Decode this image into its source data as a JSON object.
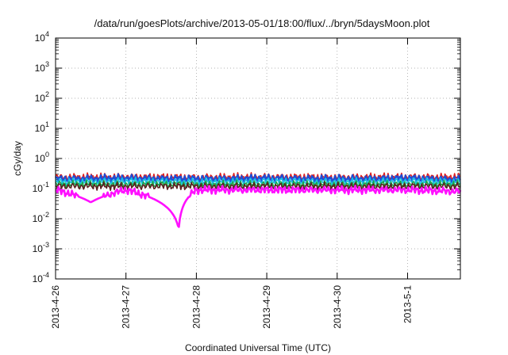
{
  "chart_data": {
    "type": "line",
    "title": "/data/run/goesPlots/archive/2013-05-01/18:00/flux/../bryn/5daysMoon.plot",
    "xlabel": "Coordinated Universal Time (UTC)",
    "ylabel": "cGy/day",
    "y_scale": "log",
    "ylim": [
      0.0001,
      10000
    ],
    "y_ticks": [
      {
        "mantissa": "10",
        "exp": "-4"
      },
      {
        "mantissa": "10",
        "exp": "-3"
      },
      {
        "mantissa": "10",
        "exp": "-2"
      },
      {
        "mantissa": "10",
        "exp": "-1"
      },
      {
        "mantissa": "10",
        "exp": "0"
      },
      {
        "mantissa": "10",
        "exp": "1"
      },
      {
        "mantissa": "10",
        "exp": "2"
      },
      {
        "mantissa": "10",
        "exp": "3"
      },
      {
        "mantissa": "10",
        "exp": "4"
      }
    ],
    "xlim": [
      "2013-04-26",
      "2013-05-01T18:00"
    ],
    "x_ticks": [
      "2013-4-26",
      "2013-4-27",
      "2013-4-28",
      "2013-4-29",
      "2013-4-30",
      "2013-5-1"
    ],
    "grid": true,
    "legend": "none",
    "series": [
      {
        "color": "#e02020",
        "base": 0.24,
        "x": [
          "2013-04-26",
          "2013-04-27",
          "2013-04-28",
          "2013-04-29",
          "2013-04-30",
          "2013-05-01",
          "2013-05-01T18:00"
        ],
        "y": [
          0.24,
          0.25,
          0.24,
          0.25,
          0.24,
          0.25,
          0.24
        ]
      },
      {
        "color": "#1f4fd6",
        "base": 0.21,
        "x": [
          "2013-04-26",
          "2013-04-27",
          "2013-04-28",
          "2013-04-29",
          "2013-04-30",
          "2013-05-01",
          "2013-05-01T18:00"
        ],
        "y": [
          0.21,
          0.22,
          0.21,
          0.22,
          0.21,
          0.22,
          0.2
        ]
      },
      {
        "color": "#19c2e0",
        "base": 0.17,
        "x": [
          "2013-04-26",
          "2013-04-27",
          "2013-04-28",
          "2013-04-29",
          "2013-04-30",
          "2013-05-01",
          "2013-05-01T18:00"
        ],
        "y": [
          0.17,
          0.18,
          0.17,
          0.18,
          0.17,
          0.18,
          0.17
        ]
      },
      {
        "color": "#1aa64a",
        "base": 0.14,
        "x": [
          "2013-04-26",
          "2013-04-27",
          "2013-04-28",
          "2013-04-29",
          "2013-04-30",
          "2013-05-01",
          "2013-05-01T18:00"
        ],
        "y": [
          0.14,
          0.14,
          0.14,
          0.14,
          0.14,
          0.14,
          0.14
        ]
      },
      {
        "color": "#5a1f1f",
        "base": 0.12,
        "x": [
          "2013-04-26",
          "2013-04-27",
          "2013-04-28",
          "2013-04-29",
          "2013-04-30",
          "2013-05-01",
          "2013-05-01T18:00"
        ],
        "y": [
          0.12,
          0.12,
          0.12,
          0.12,
          0.12,
          0.12,
          0.12
        ]
      },
      {
        "color": "#ff10ff",
        "base": 0.09,
        "x": [
          "2013-04-26",
          "2013-04-26T12:00",
          "2013-04-27",
          "2013-04-27T18:00",
          "2013-04-28",
          "2013-04-29",
          "2013-04-30",
          "2013-05-01",
          "2013-05-01T18:00"
        ],
        "y": [
          0.09,
          0.035,
          0.09,
          0.0045,
          0.09,
          0.09,
          0.09,
          0.09,
          0.08
        ]
      }
    ]
  }
}
